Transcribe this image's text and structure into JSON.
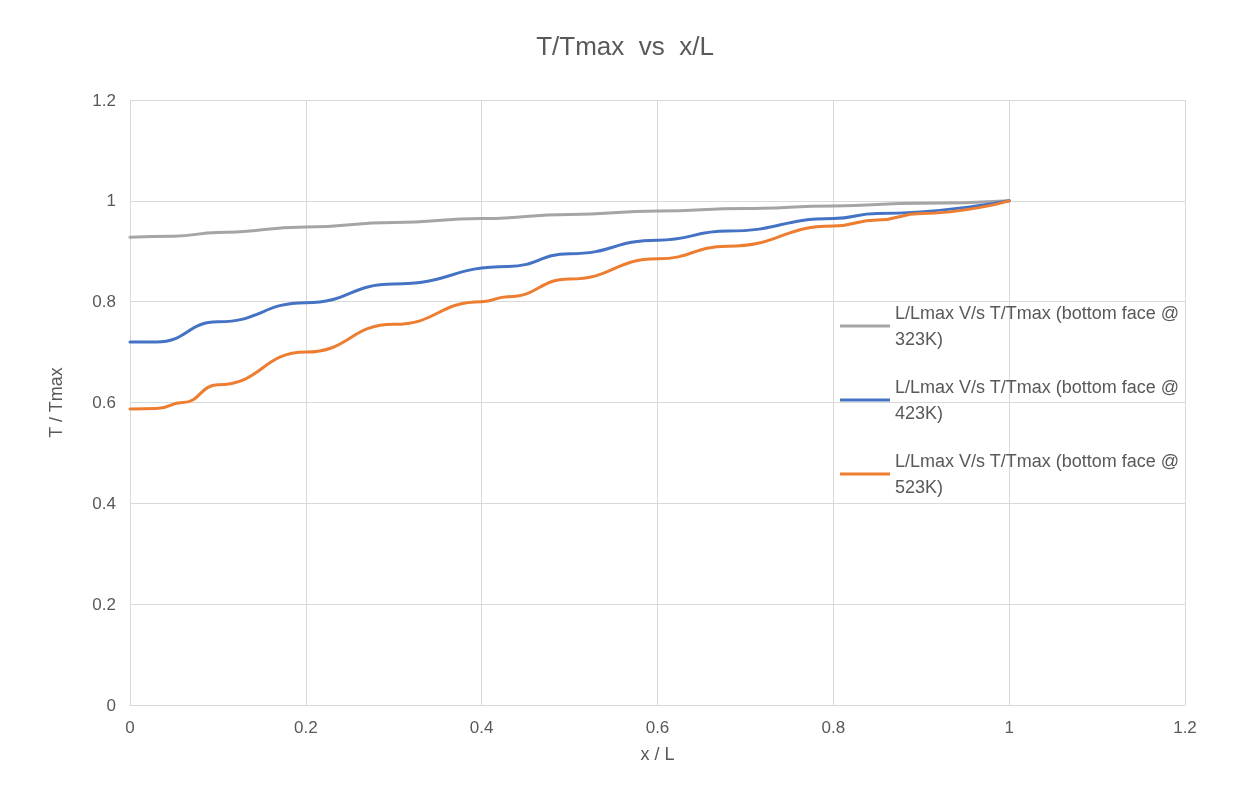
{
  "chart_data": {
    "type": "line",
    "title": "T/Tmax  vs  x/L",
    "xlabel": "x / L",
    "ylabel": "T / Tmax",
    "xlim": [
      0,
      1.2
    ],
    "xticks": [
      0,
      0.2,
      0.4,
      0.6,
      0.8,
      1,
      1.2
    ],
    "ylim": [
      0,
      1.2
    ],
    "yticks": [
      0,
      0.2,
      0.4,
      0.6,
      0.8,
      1,
      1.2
    ],
    "grid": true,
    "legend": "right",
    "marker": "none",
    "line_style": "solid",
    "series": [
      {
        "name": "L/Lmax V/s T/Tmax (bottom face @ 323K)",
        "color": "#a5a5a5",
        "x": [
          0,
          0.05,
          0.1,
          0.2,
          0.3,
          0.4,
          0.5,
          0.6,
          0.7,
          0.8,
          0.9,
          1
        ],
        "values": [
          0.928,
          0.93,
          0.937,
          0.948,
          0.957,
          0.965,
          0.973,
          0.98,
          0.985,
          0.99,
          0.995,
          1
        ]
      },
      {
        "name": "L/Lmax V/s T/Tmax (bottom face @ 423K)",
        "color": "#4472c4",
        "x": [
          0,
          0.03,
          0.1,
          0.2,
          0.3,
          0.43,
          0.5,
          0.6,
          0.68,
          0.8,
          0.85,
          1
        ],
        "values": [
          0.72,
          0.72,
          0.76,
          0.798,
          0.835,
          0.87,
          0.895,
          0.922,
          0.94,
          0.965,
          0.975,
          1
        ]
      },
      {
        "name": "L/Lmax V/s T/Tmax (bottom face @ 523K)",
        "color": "#ed7d31",
        "x": [
          0,
          0.03,
          0.06,
          0.1,
          0.2,
          0.3,
          0.4,
          0.43,
          0.5,
          0.6,
          0.68,
          0.8,
          0.85,
          0.9,
          1
        ],
        "values": [
          0.587,
          0.588,
          0.6,
          0.635,
          0.7,
          0.755,
          0.8,
          0.81,
          0.845,
          0.885,
          0.91,
          0.95,
          0.962,
          0.975,
          1
        ]
      }
    ]
  }
}
